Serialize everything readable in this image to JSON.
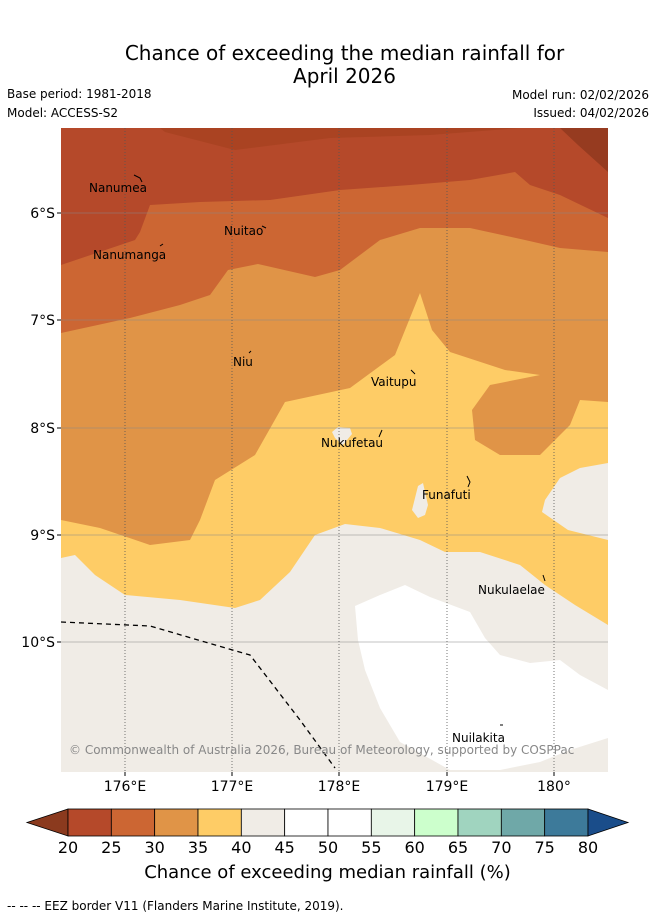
{
  "title_line1": "Chance of exceeding the median rainfall for",
  "title_line2": "April 2026",
  "base_period": "Base period: 1981-2018",
  "model": "Model: ACCESS-S2",
  "model_run": "Model run: 02/02/2026",
  "issued": "Issued: 04/02/2026",
  "copyright": "© Commonwealth of Australia 2026, Bureau of Meteorology, supported by COSPPac",
  "lat_labels": [
    "6°S",
    "7°S",
    "8°S",
    "9°S",
    "10°S"
  ],
  "lon_labels": [
    "176°E",
    "177°E",
    "178°E",
    "179°E",
    "180°"
  ],
  "places": [
    {
      "name": "Nanumea"
    },
    {
      "name": "Nuitao"
    },
    {
      "name": "Nanumanga"
    },
    {
      "name": "Niu"
    },
    {
      "name": "Vaitupu"
    },
    {
      "name": "Nukufetau"
    },
    {
      "name": "Funafuti"
    },
    {
      "name": "Nukulaelae"
    },
    {
      "name": "Nuilakita"
    }
  ],
  "colorbar": {
    "ticks": [
      "20",
      "25",
      "30",
      "35",
      "40",
      "45",
      "50",
      "55",
      "60",
      "65",
      "70",
      "75",
      "80"
    ],
    "colors": {
      "below20": "#8b3a1e",
      "20-25": "#b5492a",
      "25-30": "#cc6633",
      "30-35": "#e09447",
      "35-40": "#fecc66",
      "40-45": "#f0ece6",
      "45-50": "#ffffff",
      "50-55": "#ffffff",
      "55-60": "#e8f5e8",
      "60-65": "#ccffcc",
      "65-70": "#a0d4bf",
      "70-75": "#6fa8a8",
      "75-80": "#3d7a9a",
      "above80": "#1a4d8a"
    },
    "label": "Chance of exceeding median rainfall (%)"
  },
  "eez_note": "--  --  -- EEZ border V11 (Flanders Marine Institute, 2019)."
}
